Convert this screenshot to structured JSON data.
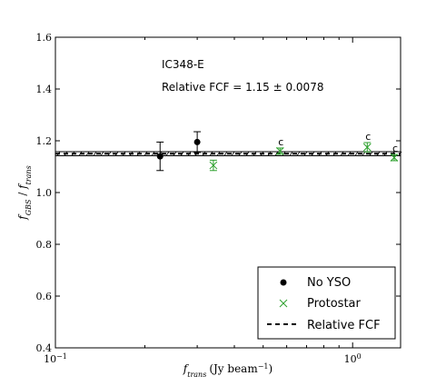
{
  "chart_data": {
    "type": "scatter",
    "region_label": "IC348-E",
    "fcf_label": "Relative FCF = 1.15 ± 0.0078",
    "xlabel": "f_trans (Jy beam⁻¹)",
    "xlabel_main": "f",
    "xlabel_sub": "trans",
    "xlabel_unit": "(Jy beam",
    "xlabel_exp": "−1",
    "xlabel_close": ")",
    "ylabel": "f_GBS / f_trans",
    "ylabel_a": "f",
    "ylabel_a_sub": "GBS",
    "ylabel_sep": " / ",
    "ylabel_b": "f",
    "ylabel_b_sub": "trans",
    "xscale": "log",
    "xlim": [
      0.1,
      1.45
    ],
    "ylim": [
      0.4,
      1.6
    ],
    "xticks": [
      {
        "value": 0.1,
        "base": "10",
        "exp": "−1"
      },
      {
        "value": 1,
        "base": "10",
        "exp": "0"
      }
    ],
    "yticks": [
      "0.4",
      "0.6",
      "0.8",
      "1.0",
      "1.2",
      "1.4",
      "1.6"
    ],
    "relative_fcf": {
      "value": 1.15,
      "error": 0.0078
    },
    "legend_position": "bottom-right",
    "series": [
      {
        "name": "No YSO",
        "marker": "circle",
        "color": "#000000",
        "points": [
          {
            "x": 0.225,
            "y": 1.14,
            "err": 0.055
          },
          {
            "x": 0.3,
            "y": 1.195,
            "err": 0.04
          }
        ]
      },
      {
        "name": "Protostar",
        "marker": "x",
        "color": "#2ca02c",
        "points": [
          {
            "x": 0.34,
            "y": 1.105,
            "err": 0.02,
            "label": ""
          },
          {
            "x": 0.57,
            "y": 1.16,
            "err": 0.012,
            "label": "c"
          },
          {
            "x": 1.12,
            "y": 1.175,
            "err": 0.018,
            "label": "c"
          },
          {
            "x": 1.38,
            "y": 1.135,
            "err": 0.012,
            "label": "c"
          }
        ]
      },
      {
        "name": "Relative FCF",
        "marker": "dashed-line",
        "color": "#000000"
      }
    ]
  }
}
